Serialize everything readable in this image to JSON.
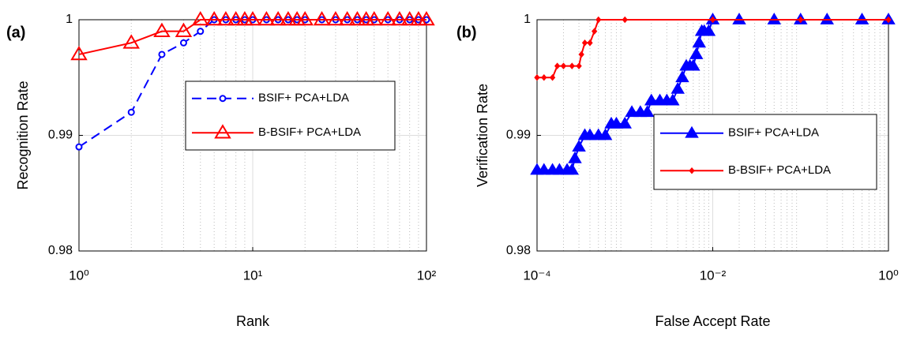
{
  "chart_data": [
    {
      "type": "line",
      "panel_label": "(a)",
      "xlabel": "Rank",
      "ylabel": "Recognition Rate",
      "xscale": "log",
      "xlim": [
        1,
        100
      ],
      "xticks": [
        {
          "value": 1,
          "label": "10⁰"
        },
        {
          "value": 10,
          "label": "10¹"
        },
        {
          "value": 100,
          "label": "10²"
        }
      ],
      "ylim": [
        0.98,
        1
      ],
      "yticks": [
        0.98,
        0.99,
        1
      ],
      "grid": true,
      "minor_grid": true,
      "series": [
        {
          "name": "BSIF+ PCA+LDA",
          "color": "#0000ff",
          "line_style": "dashed",
          "marker": "circle-open",
          "x": [
            1,
            2,
            3,
            4,
            5,
            6,
            7,
            8,
            9,
            10,
            12,
            14,
            16,
            18,
            20,
            25,
            30,
            35,
            40,
            45,
            50,
            60,
            70,
            80,
            90,
            100
          ],
          "values": [
            0.989,
            0.992,
            0.997,
            0.998,
            0.999,
            1,
            1,
            1,
            1,
            1,
            1,
            1,
            1,
            1,
            1,
            1,
            1,
            1,
            1,
            1,
            1,
            1,
            1,
            1,
            1,
            1
          ]
        },
        {
          "name": "B-BSIF+ PCA+LDA",
          "color": "#ff0000",
          "line_style": "solid",
          "marker": "triangle-open",
          "x": [
            1,
            2,
            3,
            4,
            5,
            6,
            7,
            8,
            9,
            10,
            12,
            14,
            16,
            18,
            20,
            25,
            30,
            35,
            40,
            45,
            50,
            60,
            70,
            80,
            90,
            100
          ],
          "values": [
            0.997,
            0.998,
            0.999,
            0.999,
            1,
            1,
            1,
            1,
            1,
            1,
            1,
            1,
            1,
            1,
            1,
            1,
            1,
            1,
            1,
            1,
            1,
            1,
            1,
            1,
            1,
            1
          ]
        }
      ]
    },
    {
      "type": "line",
      "panel_label": "(b)",
      "xlabel": "False Accept Rate",
      "ylabel": "Verification Rate",
      "xscale": "log",
      "xlim": [
        0.0001,
        1
      ],
      "xticks": [
        {
          "value": 0.0001,
          "label": "10⁻⁴"
        },
        {
          "value": 0.01,
          "label": "10⁻²"
        },
        {
          "value": 1,
          "label": "10⁰"
        }
      ],
      "ylim": [
        0.98,
        1
      ],
      "yticks": [
        0.98,
        0.99,
        1
      ],
      "grid": true,
      "minor_grid": true,
      "series": [
        {
          "name": "BSIF+ PCA+LDA",
          "color": "#0000ff",
          "line_style": "solid",
          "marker": "triangle-filled",
          "x": [
            0.0001,
            0.00012,
            0.00015,
            0.00018,
            0.00022,
            0.00025,
            0.00027,
            0.0003,
            0.00035,
            0.0004,
            0.0005,
            0.0006,
            0.0007,
            0.0008,
            0.001,
            0.0012,
            0.0015,
            0.0018,
            0.002,
            0.0025,
            0.003,
            0.0035,
            0.004,
            0.0045,
            0.005,
            0.0055,
            0.006,
            0.0065,
            0.007,
            0.0075,
            0.008,
            0.009,
            0.01,
            0.02,
            0.05,
            0.1,
            0.2,
            0.5,
            1
          ],
          "values": [
            0.987,
            0.987,
            0.987,
            0.987,
            0.987,
            0.987,
            0.988,
            0.989,
            0.99,
            0.99,
            0.99,
            0.99,
            0.991,
            0.991,
            0.991,
            0.992,
            0.992,
            0.992,
            0.993,
            0.993,
            0.993,
            0.993,
            0.994,
            0.995,
            0.996,
            0.996,
            0.996,
            0.997,
            0.998,
            0.999,
            0.999,
            0.999,
            1,
            1,
            1,
            1,
            1,
            1,
            1
          ]
        },
        {
          "name": "B-BSIF+ PCA+LDA",
          "color": "#ff0000",
          "line_style": "solid",
          "marker": "diamond",
          "x": [
            0.0001,
            0.00012,
            0.00015,
            0.00017,
            0.0002,
            0.00025,
            0.0003,
            0.00032,
            0.00035,
            0.0004,
            0.00045,
            0.0005,
            0.001,
            0.01,
            0.1,
            1
          ],
          "values": [
            0.995,
            0.995,
            0.995,
            0.996,
            0.996,
            0.996,
            0.996,
            0.997,
            0.998,
            0.998,
            0.999,
            1,
            1,
            1,
            1,
            1
          ]
        }
      ]
    }
  ]
}
